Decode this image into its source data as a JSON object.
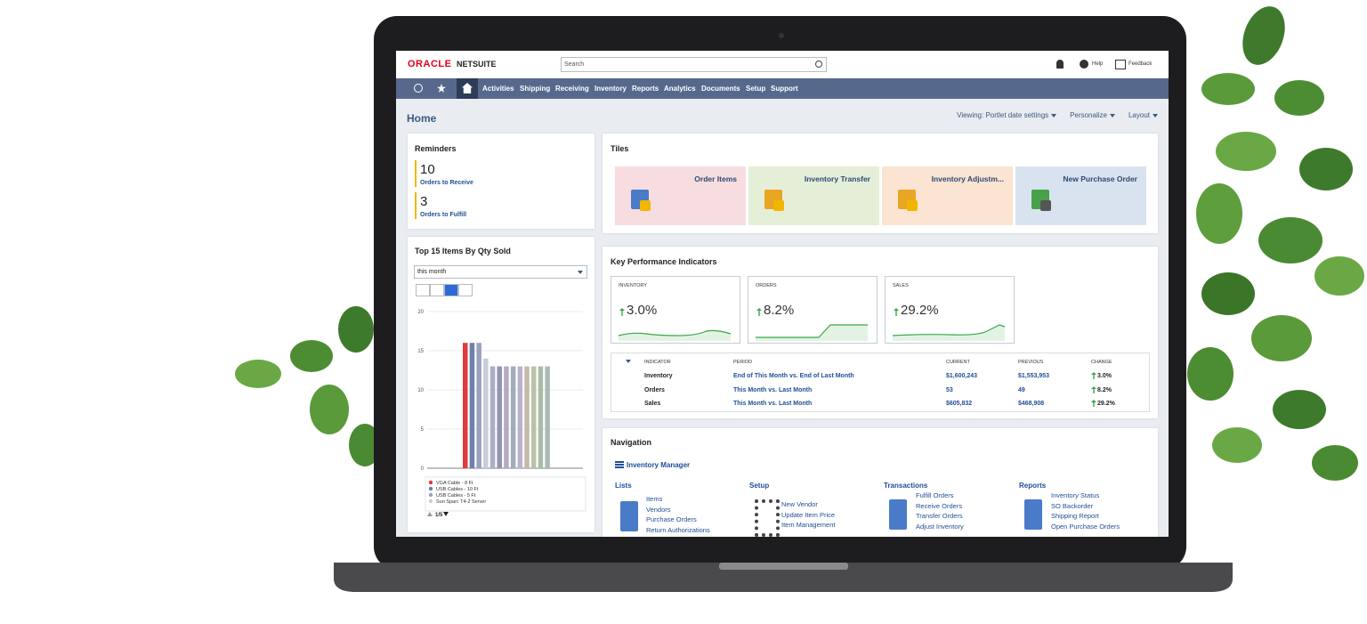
{
  "header": {
    "oracle": "ORACLE",
    "netsuite": "NETSUITE",
    "search": "Search",
    "help": "Help",
    "feedback": "Feedback"
  },
  "nav": {
    "items": [
      "Activities",
      "Shipping",
      "Receiving",
      "Inventory",
      "Reports",
      "Analytics",
      "Documents",
      "Setup",
      "Support"
    ]
  },
  "page": {
    "title": "Home",
    "actions": [
      "Viewing: Portlet date settings",
      "Personalize",
      "Layout"
    ]
  },
  "reminders": {
    "title": "Reminders",
    "items": [
      {
        "count": "10",
        "label": "Orders to Receive"
      },
      {
        "count": "3",
        "label": "Orders to Fulfill"
      }
    ]
  },
  "chart_data": {
    "type": "bar",
    "title": "Top 15 Items By Qty Sold",
    "filter": "this month",
    "categories": [
      "VGA Cable - 8 Ft",
      "USB Cables - 10 Ft",
      "USB Cables - 5 Ft",
      "Sun Sparc T4-2 Server",
      null,
      null,
      null,
      null,
      null,
      null,
      null,
      null,
      null
    ],
    "values": [
      16,
      16,
      16,
      14,
      13,
      13,
      13,
      13,
      13,
      13,
      13,
      13,
      13
    ],
    "colors": [
      "#e03a3e",
      "#6e7fa8",
      "#98a2bf",
      "#c9cdd9",
      "#a9afc8",
      "#8f96b3",
      "#b3aac3",
      "#a2acbb",
      "#bab2ca",
      "#c3baa9",
      "#b9c2aa",
      "#a9bba9",
      "#aab9b3"
    ],
    "ylim": [
      0,
      20
    ],
    "yticks": [
      0,
      5,
      10,
      15,
      20
    ],
    "grid": true,
    "pager": "1/5"
  },
  "tiles": {
    "title": "Tiles",
    "items": [
      "Order Items",
      "Inventory Transfer",
      "Inventory Adjustm...",
      "New Purchase Order"
    ]
  },
  "kpi": {
    "title": "Key Performance Indicators",
    "cards": [
      {
        "label": "INVENTORY",
        "change": "3.0%"
      },
      {
        "label": "ORDERS",
        "change": "8.2%"
      },
      {
        "label": "SALES",
        "change": "29.2%"
      }
    ],
    "table": {
      "headers": [
        "INDICATOR",
        "PERIOD",
        "CURRENT",
        "PREVIOUS",
        "CHANGE"
      ],
      "rows": [
        [
          "Inventory",
          "End of This Month vs. End of Last Month",
          "$1,600,243",
          "$1,553,953",
          "3.0%"
        ],
        [
          "Orders",
          "This Month vs. Last Month",
          "53",
          "49",
          "8.2%"
        ],
        [
          "Sales",
          "This Month vs. Last Month",
          "$605,832",
          "$468,908",
          "29.2%"
        ]
      ]
    }
  },
  "navigation": {
    "title": "Navigation",
    "center": "Inventory Manager",
    "sections": [
      {
        "title": "Lists",
        "links": [
          "Items",
          "Vendors",
          "Purchase Orders",
          "Return Authorizations"
        ]
      },
      {
        "title": "Setup",
        "links": [
          "New Vendor",
          "Update Item Price",
          "Item Management"
        ]
      },
      {
        "title": "Transactions",
        "links": [
          "Fulfill Orders",
          "Receive Orders",
          "Transfer Orders",
          "Adjust Inventory"
        ]
      },
      {
        "title": "Reports",
        "links": [
          "Inventory Status",
          "SO Backorder",
          "Shipping Report",
          "Open Purchase Orders"
        ]
      }
    ]
  }
}
